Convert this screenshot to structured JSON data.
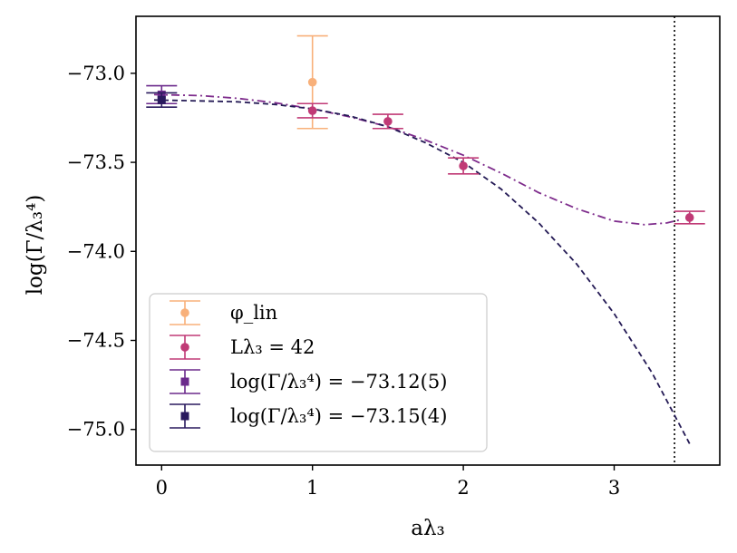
{
  "chart_data": {
    "type": "scatter",
    "xlabel": "aλ₃",
    "ylabel": "log(Γ/λ₃⁴)",
    "xlim": [
      -0.17,
      3.7
    ],
    "ylim": [
      -75.2,
      -72.68
    ],
    "xticks": [
      0,
      1,
      2,
      3
    ],
    "xtick_labels": [
      "0",
      "1",
      "2",
      "3"
    ],
    "yticks": [
      -73.0,
      -73.5,
      -74.0,
      -74.5,
      -75.0
    ],
    "ytick_labels": [
      "−73.0",
      "−73.5",
      "−74.0",
      "−74.5",
      "−75.0"
    ],
    "grid": false,
    "legend_position": "lower-left",
    "vertical_line": {
      "x": 3.4,
      "style": "dotted",
      "color": "#000000"
    },
    "series": [
      {
        "name": "φ_lin",
        "marker": "circle",
        "color": "#f8b07a",
        "points": [
          {
            "x": 1.0,
            "y": -73.05,
            "err": 0.26
          }
        ]
      },
      {
        "name": "Lλ₃ = 42",
        "marker": "circle",
        "color": "#c03a76",
        "points": [
          {
            "x": 1.0,
            "y": -73.21,
            "err": 0.04
          },
          {
            "x": 1.5,
            "y": -73.27,
            "err": 0.04
          },
          {
            "x": 2.0,
            "y": -73.52,
            "err": 0.045
          },
          {
            "x": 3.5,
            "y": -73.81,
            "err": 0.035
          }
        ]
      },
      {
        "name": "log(Γ/λ₃⁴) = −73.12(5)",
        "marker": "square",
        "color": "#6b2a8c",
        "points": [
          {
            "x": 0.0,
            "y": -73.12,
            "err": 0.05
          }
        ]
      },
      {
        "name": "log(Γ/λ₃⁴) = −73.15(4)",
        "marker": "square",
        "color": "#2a1a5e",
        "points": [
          {
            "x": 0.0,
            "y": -73.15,
            "err": 0.04
          }
        ]
      }
    ],
    "fit_curves": [
      {
        "style": "dashdot",
        "color": "#7e2c8c",
        "x": [
          -0.05,
          0.25,
          0.5,
          0.75,
          1.0,
          1.25,
          1.5,
          1.75,
          2.0,
          2.25,
          2.5,
          2.75,
          3.0,
          3.2,
          3.35,
          3.45
        ],
        "y": [
          -73.12,
          -73.125,
          -73.14,
          -73.165,
          -73.2,
          -73.245,
          -73.3,
          -73.375,
          -73.46,
          -73.56,
          -73.67,
          -73.76,
          -73.83,
          -73.85,
          -73.84,
          -73.82
        ]
      },
      {
        "style": "dashed",
        "color": "#241a55",
        "x": [
          -0.05,
          0.25,
          0.5,
          0.75,
          1.0,
          1.25,
          1.5,
          1.75,
          2.0,
          2.25,
          2.5,
          2.75,
          3.0,
          3.25,
          3.5
        ],
        "y": [
          -73.15,
          -73.155,
          -73.16,
          -73.175,
          -73.2,
          -73.24,
          -73.3,
          -73.39,
          -73.5,
          -73.65,
          -73.84,
          -74.07,
          -74.35,
          -74.68,
          -75.08
        ]
      }
    ]
  }
}
